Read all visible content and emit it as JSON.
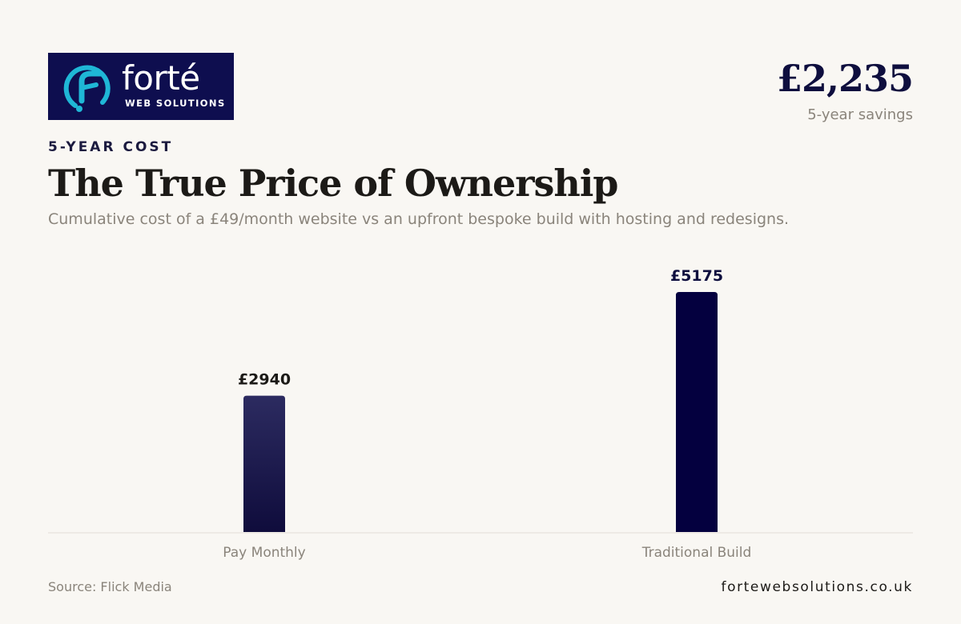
{
  "brand": {
    "name": "forté",
    "tagline": "WEB SOLUTIONS",
    "logo_bg": "#0e0e4f",
    "logo_accent": "#1fb7d6"
  },
  "savings": {
    "value": "£2,235",
    "label": "5-year savings"
  },
  "header": {
    "eyebrow": "5-YEAR COST",
    "title": "The True Price of Ownership",
    "subtitle": "Cumulative cost of a £49/month website vs an upfront bespoke build with hosting and redesigns."
  },
  "chart_data": {
    "type": "bar",
    "categories": [
      "Pay Monthly",
      "Traditional Build"
    ],
    "values": [
      2940,
      5175
    ],
    "value_labels": [
      "£2940",
      "£5175"
    ],
    "ylim": [
      0,
      5175
    ],
    "grid": false,
    "legend": "none",
    "colors": [
      "#26265e",
      "#04003f"
    ]
  },
  "footer": {
    "source": "Source: Flick Media",
    "website": "fortewebsolutions.co.uk"
  }
}
